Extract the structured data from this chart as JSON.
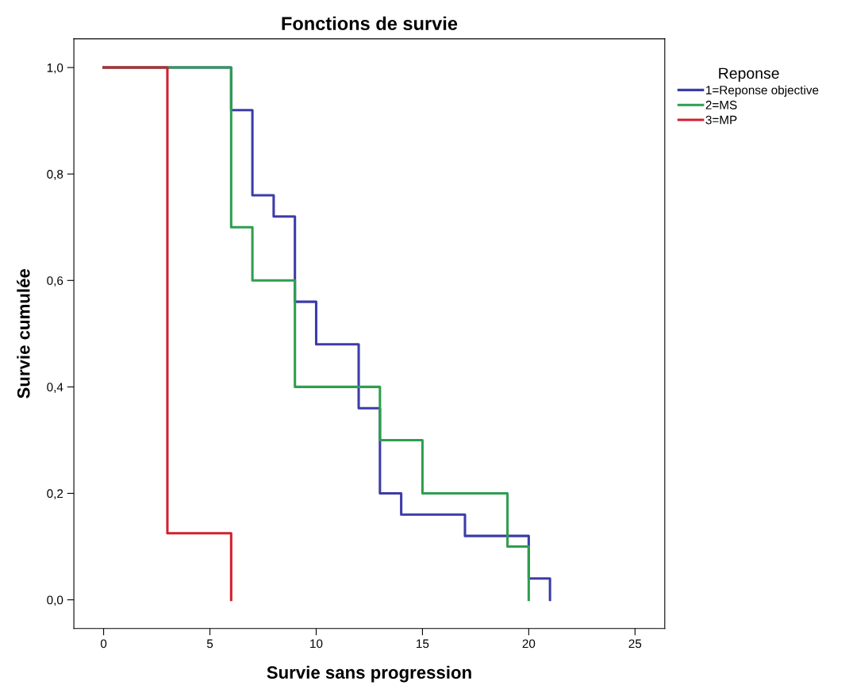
{
  "chart_data": {
    "type": "step",
    "title": "Fonctions de survie",
    "xlabel": "Survie sans progression",
    "ylabel": "Survie cumulée",
    "legend_title": "Reponse",
    "legend": "top right",
    "grid": false,
    "marker": "none",
    "line_style": "solid",
    "xlim": [
      -1.4,
      26.4
    ],
    "xticks": [
      0,
      5,
      10,
      15,
      20,
      25
    ],
    "ylim": [
      -0.054,
      1.054
    ],
    "yticks": [
      {
        "value": 0,
        "label": "0,0"
      },
      {
        "value": 0.2,
        "label": "0,2"
      },
      {
        "value": 0.4,
        "label": "0,4"
      },
      {
        "value": 0.6,
        "label": "0,6"
      },
      {
        "value": 0.8,
        "label": "0,8"
      },
      {
        "value": 1,
        "label": "1,0"
      }
    ],
    "series": [
      {
        "name": "1=Reponse objective",
        "color": "#3c3ca8",
        "x": [
          0,
          6,
          7,
          8,
          9,
          10,
          12,
          13,
          14,
          17,
          20,
          21
        ],
        "values": [
          1,
          0.92,
          0.76,
          0.72,
          0.56,
          0.48,
          0.36,
          0.2,
          0.16,
          0.12,
          0.04,
          0
        ]
      },
      {
        "name": "2=MS",
        "color": "#2e9e4f",
        "x": [
          0,
          6,
          7,
          9,
          13,
          15,
          19,
          20
        ],
        "values": [
          1,
          0.7,
          0.6,
          0.4,
          0.3,
          0.2,
          0.1,
          0
        ]
      },
      {
        "name": "3=MP",
        "color": "#d0202e",
        "x": [
          0,
          3,
          6
        ],
        "values": [
          1,
          0.125,
          0
        ]
      }
    ]
  }
}
